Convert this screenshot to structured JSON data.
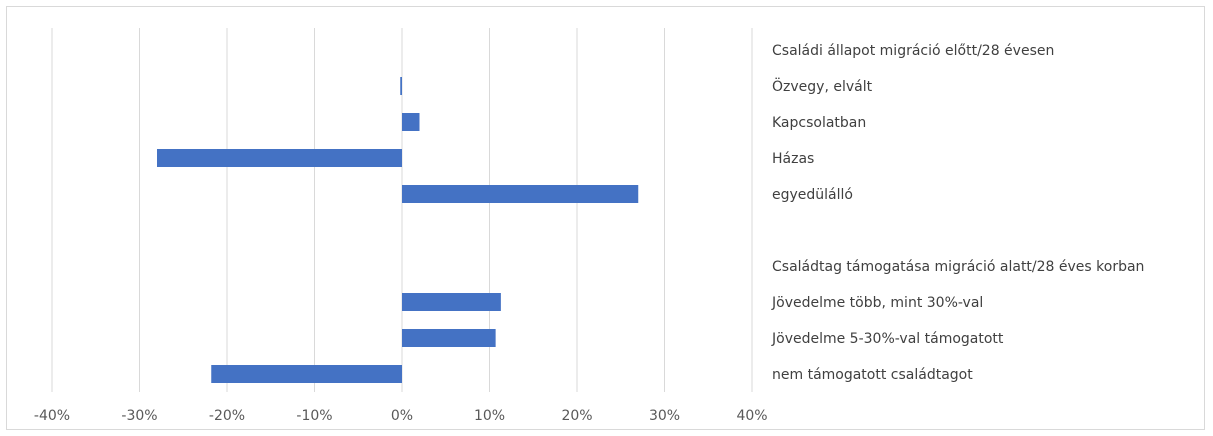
{
  "chart_data": {
    "type": "bar",
    "orientation": "horizontal",
    "xlim": [
      -0.4,
      0.4
    ],
    "x_ticks": [
      -0.4,
      -0.3,
      -0.2,
      -0.1,
      0,
      0.1,
      0.2,
      0.3,
      0.4
    ],
    "x_tick_labels": [
      "-40%",
      "-30%",
      "-20%",
      "-10%",
      "0%",
      "10%",
      "20%",
      "30%",
      "40%"
    ],
    "grid": "vertical",
    "bar_color": "#4472c4",
    "categories": [
      "Családi állapot migráció előtt/28 évesen",
      "Özvegy, elvált",
      "Kapcsolatban",
      "Házas",
      "egyedülálló",
      "",
      "Családtag támogatása migráció alatt/28 éves korban",
      "Jövedelme több, mint 30%-val",
      "Jövedelme 5-30%-val támogatott",
      "nem támogatott családtagot"
    ],
    "values": [
      null,
      -0.002,
      0.02,
      -0.28,
      0.27,
      null,
      null,
      0.113,
      0.107,
      -0.218
    ]
  }
}
